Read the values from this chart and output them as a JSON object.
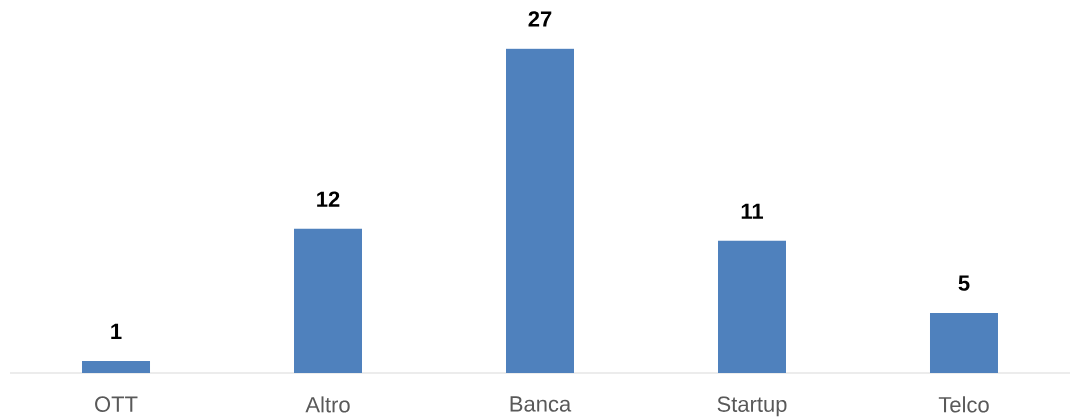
{
  "chart_data": {
    "type": "bar",
    "categories": [
      "OTT",
      "Altro",
      "Banca",
      "Startup",
      "Telco"
    ],
    "values": [
      1,
      12,
      27,
      11,
      5
    ],
    "color": "#4f81bd",
    "data_labels": true
  }
}
